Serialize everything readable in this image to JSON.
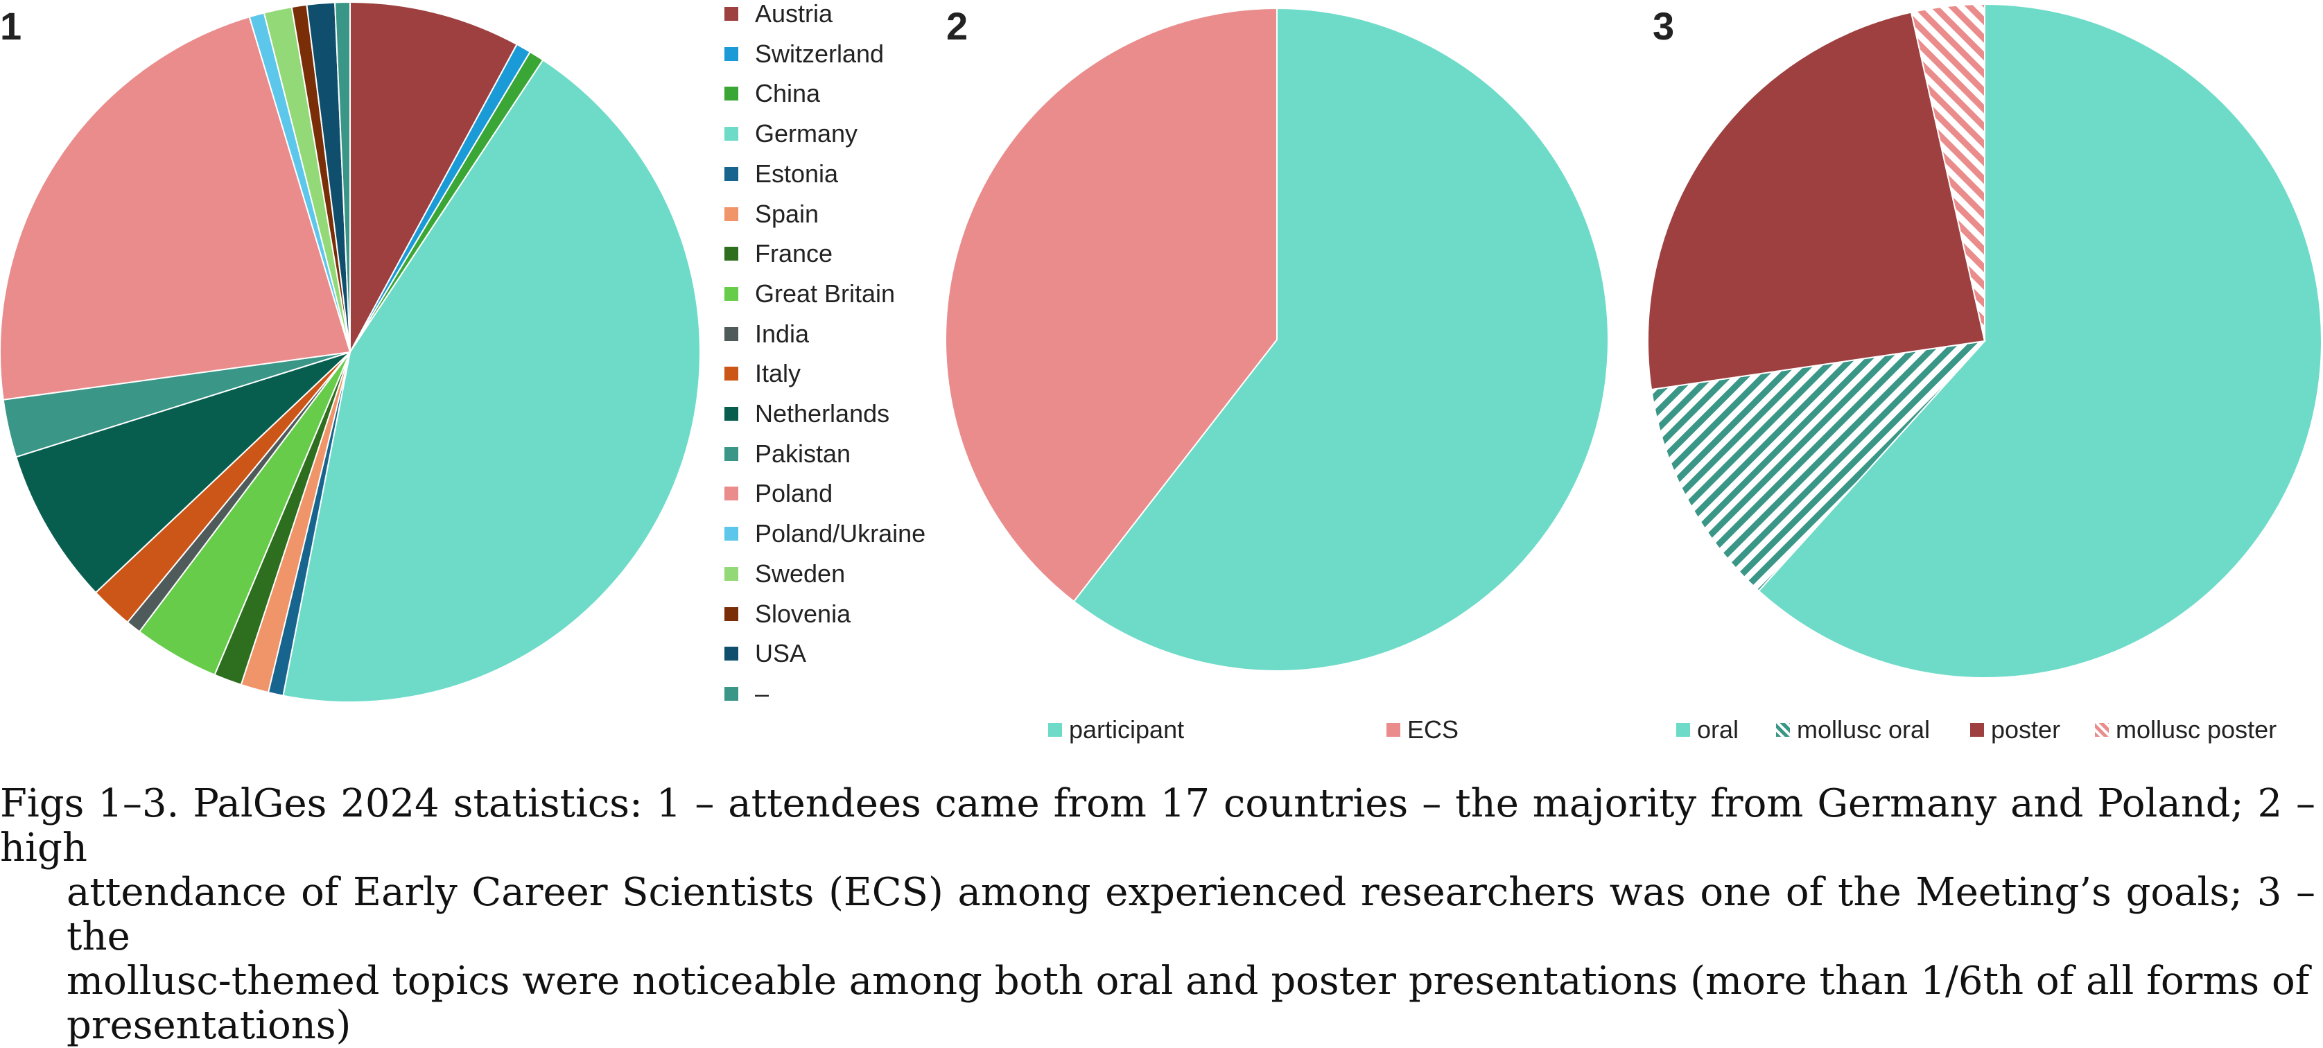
{
  "figure": {
    "panels": [
      "1",
      "2",
      "3"
    ],
    "caption_lines": [
      "Figs 1–3. PalGes 2024 statistics: 1 – attendees came from 17 countries – the majority from Germany and Poland; 2 – high",
      "attendance of Early Career Scientists (ECS) among experienced researchers was one of the Meeting’s goals; 3 – the",
      "mollusc-themed topics were noticeable among both oral and poster presentations (more than 1/6th of all forms of",
      "presentations)"
    ]
  },
  "chart_data": [
    {
      "type": "pie",
      "panel": "1",
      "title": "",
      "legend_position": "right",
      "slices": [
        {
          "label": "Austria",
          "value": 8.0,
          "color": "#9e4040"
        },
        {
          "label": "Switzerland",
          "value": 0.7,
          "color": "#1a9bd7"
        },
        {
          "label": "China",
          "value": 0.7,
          "color": "#3aa635"
        },
        {
          "label": "Germany",
          "value": 44.3,
          "color": "#6ddbc8"
        },
        {
          "label": "Estonia",
          "value": 0.7,
          "color": "#17658e"
        },
        {
          "label": "Spain",
          "value": 1.3,
          "color": "#f0956a"
        },
        {
          "label": "France",
          "value": 1.3,
          "color": "#2d6e1f"
        },
        {
          "label": "Great Britain",
          "value": 4.0,
          "color": "#66cc4a"
        },
        {
          "label": "India",
          "value": 0.7,
          "color": "#4f5a5a"
        },
        {
          "label": "Italy",
          "value": 2.0,
          "color": "#cc5518"
        },
        {
          "label": "Netherlands",
          "value": 7.3,
          "color": "#075e4f"
        },
        {
          "label": "Pakistan",
          "value": 2.7,
          "color": "#3a9686"
        },
        {
          "label": "Poland",
          "value": 22.8,
          "color": "#ea8c8c"
        },
        {
          "label": "Poland/Ukraine",
          "value": 0.7,
          "color": "#5cc7ea"
        },
        {
          "label": "Sweden",
          "value": 1.3,
          "color": "#94d977"
        },
        {
          "label": "Slovenia",
          "value": 0.7,
          "color": "#7a2e08"
        },
        {
          "label": "USA",
          "value": 1.3,
          "color": "#0f4f6d"
        },
        {
          "label": "–",
          "value": 0.7,
          "color": "#3a9686"
        }
      ]
    },
    {
      "type": "pie",
      "panel": "2",
      "title": "",
      "legend_position": "bottom",
      "slices": [
        {
          "label": "participant",
          "value": 60.5,
          "color": "#6ddbc8"
        },
        {
          "label": "ECS",
          "value": 39.5,
          "color": "#ea8c8c"
        }
      ]
    },
    {
      "type": "pie",
      "panel": "3",
      "title": "",
      "legend_position": "bottom",
      "slices": [
        {
          "label": "oral",
          "value": 61.7,
          "color": "#6ddbc8",
          "pattern": "solid"
        },
        {
          "label": "mollusc oral",
          "value": 11.0,
          "color": "#3a9686",
          "pattern": "hatch"
        },
        {
          "label": "poster",
          "value": 23.8,
          "color": "#9e4040",
          "pattern": "solid"
        },
        {
          "label": "mollusc poster",
          "value": 3.5,
          "color": "#ea8c8c",
          "pattern": "hatch"
        }
      ]
    }
  ]
}
